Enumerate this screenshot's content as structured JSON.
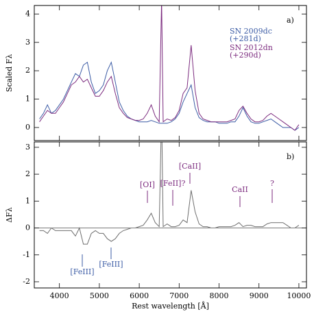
{
  "chart_data": [
    {
      "type": "line",
      "panel_label": "a)",
      "ylabel": "Scaled Fλ",
      "x": [
        3500,
        3600,
        3700,
        3800,
        3900,
        4000,
        4100,
        4200,
        4300,
        4400,
        4500,
        4600,
        4700,
        4800,
        4900,
        5000,
        5100,
        5200,
        5300,
        5400,
        5500,
        5600,
        5700,
        5800,
        5900,
        6000,
        6100,
        6200,
        6300,
        6400,
        6500,
        6560,
        6600,
        6700,
        6800,
        6900,
        7000,
        7100,
        7200,
        7300,
        7400,
        7500,
        7600,
        7700,
        7800,
        7900,
        8000,
        8100,
        8200,
        8300,
        8400,
        8500,
        8600,
        8700,
        8800,
        8900,
        9000,
        9100,
        9200,
        9300,
        9400,
        9500,
        9600,
        9700,
        9800,
        9900,
        10000
      ],
      "series": [
        {
          "name": "SN 2009dc",
          "epoch": "(+281d)",
          "color": "#3b5ba5",
          "values": [
            0.3,
            0.5,
            0.8,
            0.5,
            0.6,
            0.8,
            1.0,
            1.3,
            1.6,
            1.9,
            1.8,
            2.2,
            2.3,
            1.6,
            1.2,
            1.3,
            1.5,
            2.0,
            2.3,
            1.6,
            0.9,
            0.6,
            0.4,
            0.3,
            0.25,
            0.2,
            0.2,
            0.2,
            0.25,
            0.2,
            0.15,
            0.15,
            0.15,
            0.15,
            0.2,
            0.3,
            0.5,
            0.9,
            1.2,
            1.5,
            0.7,
            0.35,
            0.25,
            0.2,
            0.2,
            0.2,
            0.15,
            0.15,
            0.15,
            0.2,
            0.2,
            0.4,
            0.7,
            0.4,
            0.2,
            0.15,
            0.15,
            0.2,
            0.25,
            0.3,
            0.2,
            0.1,
            0.0,
            0.0,
            0.0,
            -0.1,
            0.0
          ]
        },
        {
          "name": "SN 2012dn",
          "epoch": "(+290d)",
          "color": "#7b2a7e",
          "values": [
            0.2,
            0.4,
            0.6,
            0.5,
            0.5,
            0.7,
            0.9,
            1.2,
            1.5,
            1.6,
            1.8,
            1.6,
            1.7,
            1.4,
            1.1,
            1.1,
            1.3,
            1.6,
            1.8,
            1.2,
            0.7,
            0.5,
            0.35,
            0.3,
            0.25,
            0.25,
            0.3,
            0.5,
            0.8,
            0.4,
            0.2,
            4.5,
            0.2,
            0.3,
            0.25,
            0.35,
            0.6,
            1.2,
            1.4,
            2.9,
            1.3,
            0.5,
            0.3,
            0.25,
            0.2,
            0.2,
            0.2,
            0.2,
            0.2,
            0.25,
            0.3,
            0.6,
            0.75,
            0.5,
            0.3,
            0.2,
            0.2,
            0.25,
            0.4,
            0.5,
            0.4,
            0.3,
            0.2,
            0.1,
            0.0,
            -0.1,
            0.1
          ]
        }
      ],
      "xlim": [
        3370,
        10190
      ],
      "ylim": [
        -0.46,
        4.3
      ],
      "yticks": [
        0,
        1,
        2,
        3,
        4
      ]
    },
    {
      "type": "line",
      "panel_label": "b)",
      "ylabel": "ΔFλ",
      "xlabel": "Rest wavelength [Å]",
      "x": [
        3500,
        3600,
        3700,
        3800,
        3900,
        4000,
        4100,
        4200,
        4300,
        4400,
        4500,
        4600,
        4700,
        4800,
        4900,
        5000,
        5100,
        5200,
        5300,
        5400,
        5500,
        5600,
        5700,
        5800,
        5900,
        6000,
        6100,
        6200,
        6300,
        6400,
        6500,
        6560,
        6600,
        6700,
        6800,
        6900,
        7000,
        7100,
        7200,
        7300,
        7400,
        7500,
        7600,
        7700,
        7800,
        7900,
        8000,
        8100,
        8200,
        8300,
        8400,
        8500,
        8600,
        8700,
        8800,
        8900,
        9000,
        9100,
        9200,
        9300,
        9400,
        9500,
        9600,
        9700,
        9800,
        9900,
        10000
      ],
      "series": [
        {
          "color": "#6e6e6e",
          "values": [
            -0.1,
            -0.1,
            -0.2,
            0,
            -0.1,
            -0.1,
            -0.1,
            -0.1,
            -0.1,
            -0.3,
            0,
            -0.6,
            -0.6,
            -0.2,
            -0.1,
            -0.2,
            -0.2,
            -0.4,
            -0.5,
            -0.4,
            -0.2,
            -0.1,
            -0.05,
            0,
            0,
            0.05,
            0.1,
            0.3,
            0.55,
            0.2,
            0.05,
            4.35,
            0.05,
            0.15,
            0.05,
            0.05,
            0.1,
            0.3,
            0.2,
            1.4,
            0.6,
            0.15,
            0.05,
            0.05,
            0,
            0,
            0.05,
            0.05,
            0.05,
            0.05,
            0.1,
            0.2,
            0.05,
            0.1,
            0.1,
            0.05,
            0.05,
            0.05,
            0.15,
            0.2,
            0.2,
            0.2,
            0.2,
            0.1,
            0,
            0,
            0.1
          ]
        }
      ],
      "annotations": [
        {
          "text": "[OI]",
          "color": "#7b2a7e"
        },
        {
          "text": "[FeII]?",
          "color": "#7b2a7e"
        },
        {
          "text": "[CaII]",
          "color": "#7b2a7e"
        },
        {
          "text": "CaII",
          "color": "#7b2a7e"
        },
        {
          "text": "?",
          "color": "#7b2a7e"
        },
        {
          "text": "[FeIII]",
          "color": "#3b5ba5"
        },
        {
          "text": "[FeIII]",
          "color": "#3b5ba5"
        }
      ],
      "xlim": [
        3370,
        10190
      ],
      "ylim": [
        -2.23,
        3.2
      ],
      "xticks": [
        4000,
        5000,
        6000,
        7000,
        8000,
        9000,
        10000
      ],
      "yticks": [
        -2,
        -1,
        0,
        1,
        2,
        3
      ]
    }
  ]
}
